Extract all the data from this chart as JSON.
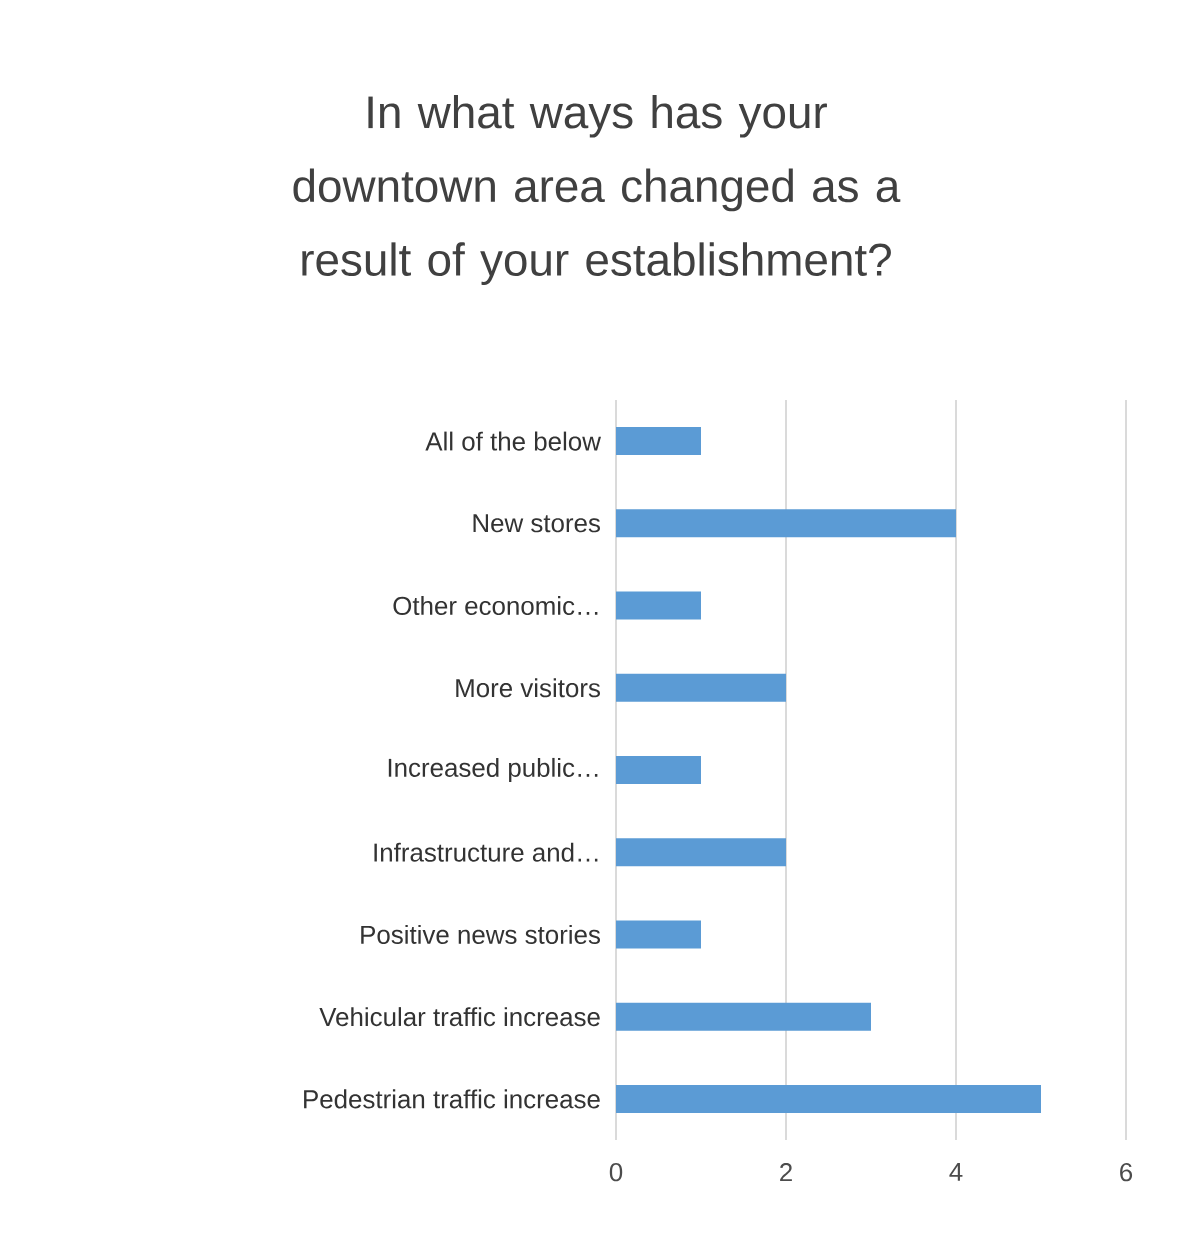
{
  "chart_data": {
    "type": "bar",
    "orientation": "horizontal",
    "title": "In what ways has your downtown area changed as a result of your establishment?",
    "categories": [
      "All of the below",
      "New stores",
      "Other economic…",
      "More visitors",
      "Increased public…",
      "Infrastructure and…",
      "Positive news stories",
      "Vehicular traffic increase",
      "Pedestrian traffic increase"
    ],
    "values": [
      1,
      4,
      1,
      2,
      1,
      2,
      1,
      3,
      5
    ],
    "color": "#5b9bd5",
    "xlim": [
      0,
      6
    ],
    "xticks": [
      0,
      2,
      4,
      6
    ],
    "grid": "x"
  }
}
